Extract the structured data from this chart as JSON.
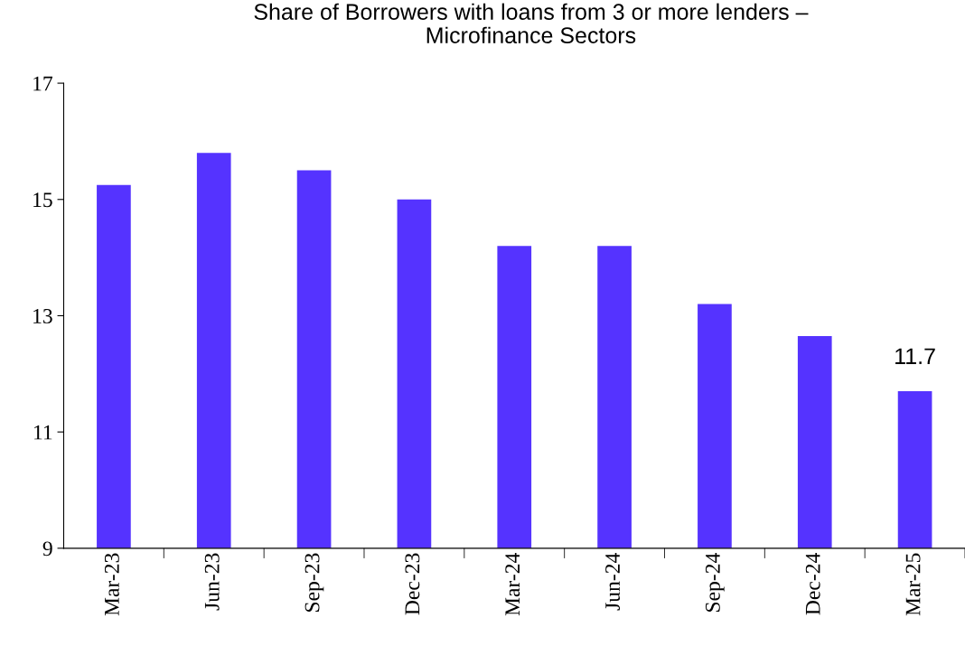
{
  "chart_data": {
    "type": "bar",
    "title": "Share of Borrowers with loans from 3 or more lenders –\nMicrofinance Sectors",
    "categories": [
      "Mar-23",
      "Jun-23",
      "Sep-23",
      "Dec-23",
      "Mar-24",
      "Jun-24",
      "Sep-24",
      "Dec-24",
      "Mar-25"
    ],
    "values": [
      15.25,
      15.8,
      15.5,
      15.0,
      14.2,
      14.2,
      13.2,
      12.65,
      11.7
    ],
    "value_labels": [
      null,
      null,
      null,
      null,
      null,
      null,
      null,
      null,
      "11.7"
    ],
    "color": "#5533ff",
    "ylim": [
      9,
      17
    ],
    "yticks": [
      9,
      11,
      13,
      15,
      17
    ],
    "grid": false,
    "legend": false
  }
}
